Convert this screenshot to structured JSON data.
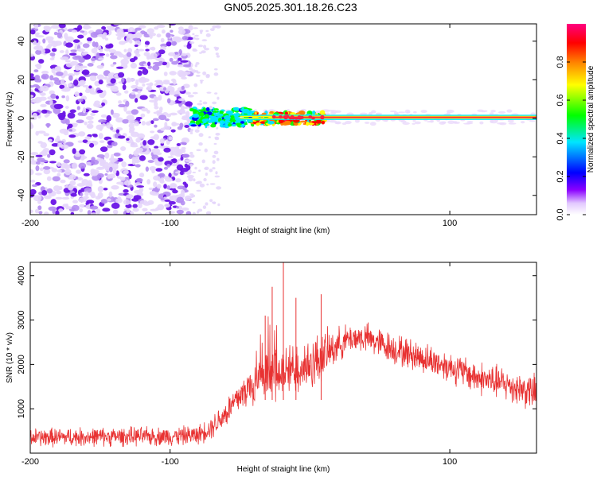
{
  "title": "GN05.2025.301.18.26.C23",
  "colors": {
    "snr_line": "#e83232",
    "ridge": "#ff2d3c",
    "noise_light": "#d9c4f7",
    "noise_dark": "#6b1de0",
    "axis": "#000000"
  },
  "chart_data": [
    {
      "type": "heatmap",
      "title": "",
      "xlabel": "Height of straight line (km)",
      "ylabel": "Frequency (Hz)",
      "xlim": [
        -200,
        162
      ],
      "ylim": [
        -50,
        49
      ],
      "xticks": [
        -200,
        -100,
        100
      ],
      "yticks": [
        -40,
        -20,
        0,
        20,
        40
      ],
      "xtick_labels": [
        "-200",
        "-100",
        "100"
      ],
      "ytick_labels": [
        "-40",
        "-20",
        "0",
        "20",
        "40"
      ],
      "colorbar": {
        "label": "Normalized spectral amplitude",
        "range": [
          0,
          1
        ],
        "ticks": [
          0.0,
          0.2,
          0.4,
          0.6,
          0.8
        ],
        "tick_labels": [
          "0.0",
          "0.2",
          "0.4",
          "0.6",
          "0.8"
        ],
        "colormap": [
          "#ffffff",
          "#8a00ff",
          "#0000ff",
          "#00e5ff",
          "#00ff00",
          "#ffff00",
          "#ff8000",
          "#ff0000",
          "#ff0080"
        ]
      },
      "regions": [
        {
          "name": "noise",
          "x_range": [
            -200,
            -85
          ],
          "freq_range": [
            -50,
            49
          ],
          "amplitude": 0.1
        },
        {
          "name": "sparse-noise",
          "x_range": [
            -85,
            -65
          ],
          "freq_range": [
            -50,
            49
          ],
          "amplitude": 0.05
        },
        {
          "name": "onset",
          "x_range": [
            -85,
            -40
          ],
          "freq_range": [
            -4,
            5
          ],
          "amplitude": 0.4
        },
        {
          "name": "transition",
          "x_range": [
            -40,
            10
          ],
          "freq_range": [
            -3,
            3
          ],
          "amplitude": 0.7
        },
        {
          "name": "carrier",
          "x_range": [
            10,
            162
          ],
          "freq": 0.5,
          "amplitude": 0.95
        }
      ]
    },
    {
      "type": "line",
      "title": "",
      "xlabel": "Height of straight line (km)",
      "ylabel": "SNR (10 * v/v)",
      "xlim": [
        -200,
        162
      ],
      "ylim": [
        0,
        4300
      ],
      "xticks": [
        -200,
        -100,
        100
      ],
      "yticks": [
        1000,
        2000,
        3000,
        4000
      ],
      "xtick_labels": [
        "-200",
        "-100",
        "100"
      ],
      "ytick_labels": [
        "1000",
        "2000",
        "3000",
        "4000"
      ],
      "series": [
        {
          "name": "SNR",
          "envelope_x": [
            -200,
            -150,
            -100,
            -80,
            -70,
            -60,
            -50,
            -40,
            -30,
            -20,
            -10,
            0,
            10,
            20,
            30,
            40,
            60,
            80,
            100,
            120,
            140,
            162
          ],
          "envelope_y": [
            350,
            370,
            380,
            410,
            600,
            900,
            1300,
            1550,
            1700,
            1800,
            1900,
            2000,
            2200,
            2450,
            2600,
            2600,
            2350,
            2150,
            1950,
            1700,
            1550,
            1350
          ],
          "noise_amplitude": [
            250,
            250,
            250,
            260,
            320,
            400,
            500,
            600,
            650,
            700,
            750,
            800,
            650,
            450,
            400,
            400,
            420,
            420,
            420,
            450,
            450,
            500
          ],
          "peaks": [
            {
              "x": -19,
              "y": 4300
            },
            {
              "x": -27,
              "y": 3750
            },
            {
              "x": 8,
              "y": 3580
            },
            {
              "x": -10,
              "y": 3500
            },
            {
              "x": -32,
              "y": 3100
            }
          ]
        }
      ]
    }
  ]
}
